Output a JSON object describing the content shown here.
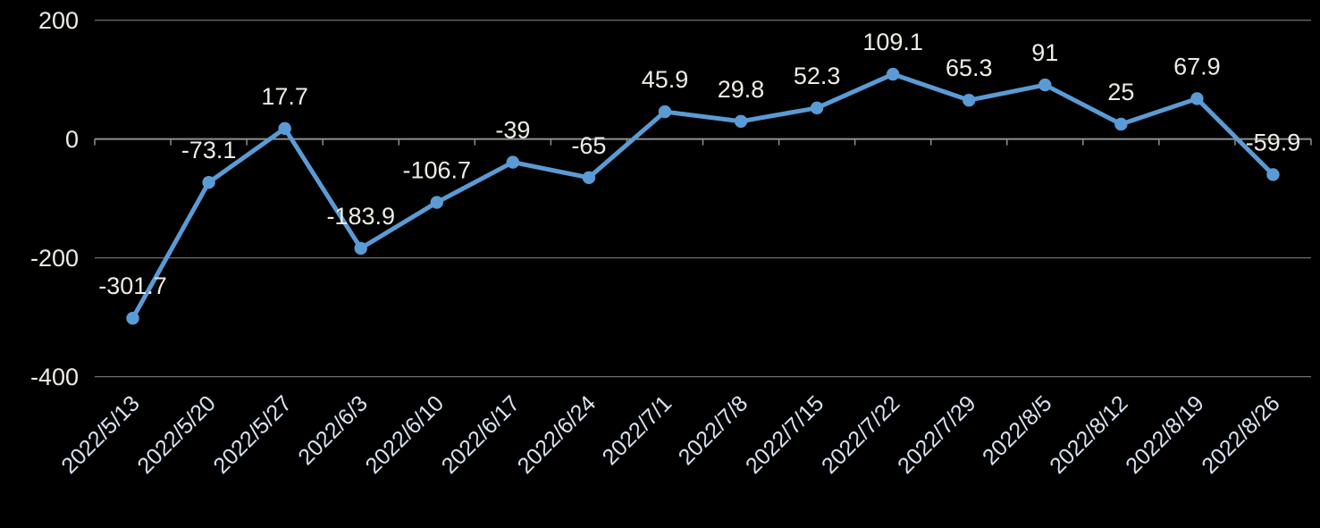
{
  "chart_data": {
    "type": "line",
    "title": "",
    "xlabel": "",
    "ylabel": "",
    "categories": [
      "2022/5/13",
      "2022/5/20",
      "2022/5/27",
      "2022/6/3",
      "2022/6/10",
      "2022/6/17",
      "2022/6/24",
      "2022/7/1",
      "2022/7/8",
      "2022/7/15",
      "2022/7/22",
      "2022/7/29",
      "2022/8/5",
      "2022/8/12",
      "2022/8/19",
      "2022/8/26"
    ],
    "series": [
      {
        "name": "series-1",
        "values": [
          -301.7,
          -73.1,
          17.7,
          -183.9,
          -106.7,
          -39,
          -65,
          45.9,
          29.8,
          52.3,
          109.1,
          65.3,
          91,
          25,
          67.9,
          -59.9
        ],
        "point_labels": [
          "-301.7",
          "-73.1",
          "17.7",
          "-183.9",
          "-106.7",
          "-39",
          "-65",
          "45.9",
          "29.8",
          "52.3",
          "109.1",
          "65.3",
          "91",
          "25",
          "67.9",
          "-59.9"
        ]
      }
    ],
    "ylim": [
      -400,
      200
    ],
    "yticks": [
      200,
      0,
      -200,
      -400
    ],
    "ytick_labels": [
      "200",
      "0",
      "-200",
      "-400"
    ],
    "grid": true,
    "legend": "none",
    "x_label_rotation_deg": -45,
    "colors": {
      "background": "#000000",
      "line": "#5B9BD5",
      "marker": "#5B9BD5",
      "data_label": "#EFECE5",
      "y_axis_label": "#EFECE5",
      "x_axis_label": "#D9E3F0",
      "gridline": "#6E6E6E",
      "axis_line": "#8F8F8F"
    }
  }
}
